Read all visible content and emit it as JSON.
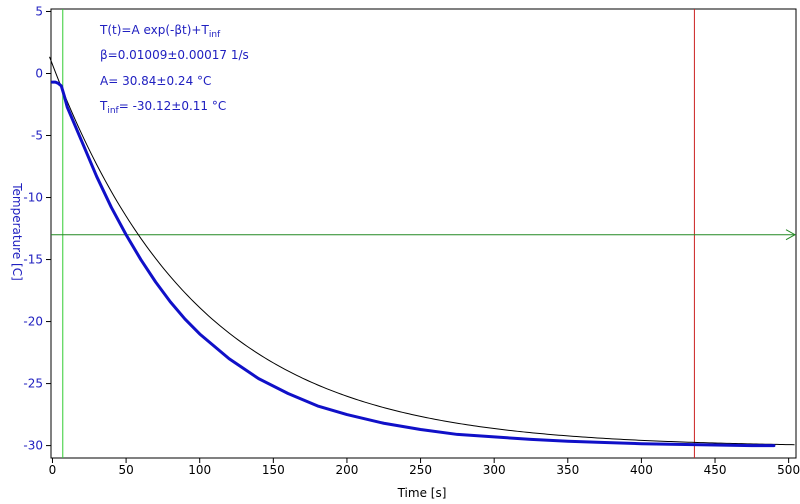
{
  "colors": {
    "data_series": "#1010c8",
    "fit_line": "#000000",
    "y_axis_text": "#2020c0",
    "x_axis_text": "#000000",
    "fit_text": "#2020c0",
    "green_cursor": "#33cc33",
    "red_cursor": "#cc2222",
    "horizontal_cursor": "#228822"
  },
  "chart_data": {
    "type": "line",
    "xlabel": "Time [s]",
    "ylabel": "Temperature [C]",
    "xlim": [
      -1,
      505
    ],
    "ylim": [
      -31,
      5.2
    ],
    "x_ticks": [
      0,
      50,
      100,
      150,
      200,
      250,
      300,
      350,
      400,
      450,
      500
    ],
    "y_ticks": [
      5,
      0,
      -5,
      -10,
      -15,
      -20,
      -25,
      -30
    ],
    "x_tick_labels": [
      "0",
      "50",
      "100",
      "150",
      "200",
      "250",
      "300",
      "350",
      "400",
      "450",
      "500"
    ],
    "y_tick_labels": [
      "5",
      "0",
      "-5",
      "-10",
      "-15",
      "-20",
      "-25",
      "-30"
    ],
    "grid": false,
    "fit_model": {
      "A": 30.84,
      "beta": 0.01009,
      "T_inf": -30.12
    },
    "annotations": {
      "line1_main": "T(t)=A exp(-βt)+T",
      "line1_sub": "inf",
      "line2": "β=0.01009±0.00017 1/s",
      "line3": "A= 30.84±0.24 °C",
      "line4_main": "T",
      "line4_sub": "inf",
      "line4_rest": "= -30.12±0.11 °C"
    },
    "cursors": {
      "green_x": 7,
      "red_x": 436,
      "horizontal_y": -13
    },
    "series": [
      {
        "x": [
          0,
          2,
          4,
          6,
          8,
          10,
          20,
          30,
          40,
          50,
          60,
          70,
          80,
          90,
          100,
          120,
          140,
          160,
          180,
          200,
          225,
          250,
          275,
          300,
          325,
          350,
          375,
          400,
          425,
          450,
          475,
          490
        ],
        "y": [
          -0.7,
          -0.7,
          -0.8,
          -1.0,
          -1.8,
          -2.7,
          -5.5,
          -8.3,
          -10.8,
          -13.0,
          -15.0,
          -16.8,
          -18.4,
          -19.8,
          -21.0,
          -23.0,
          -24.6,
          -25.8,
          -26.8,
          -27.5,
          -28.2,
          -28.7,
          -29.1,
          -29.3,
          -29.5,
          -29.65,
          -29.75,
          -29.85,
          -29.9,
          -29.95,
          -30.0,
          -30.0
        ]
      }
    ],
    "fit_line": {
      "x_start": -2,
      "x_end": 505
    }
  }
}
